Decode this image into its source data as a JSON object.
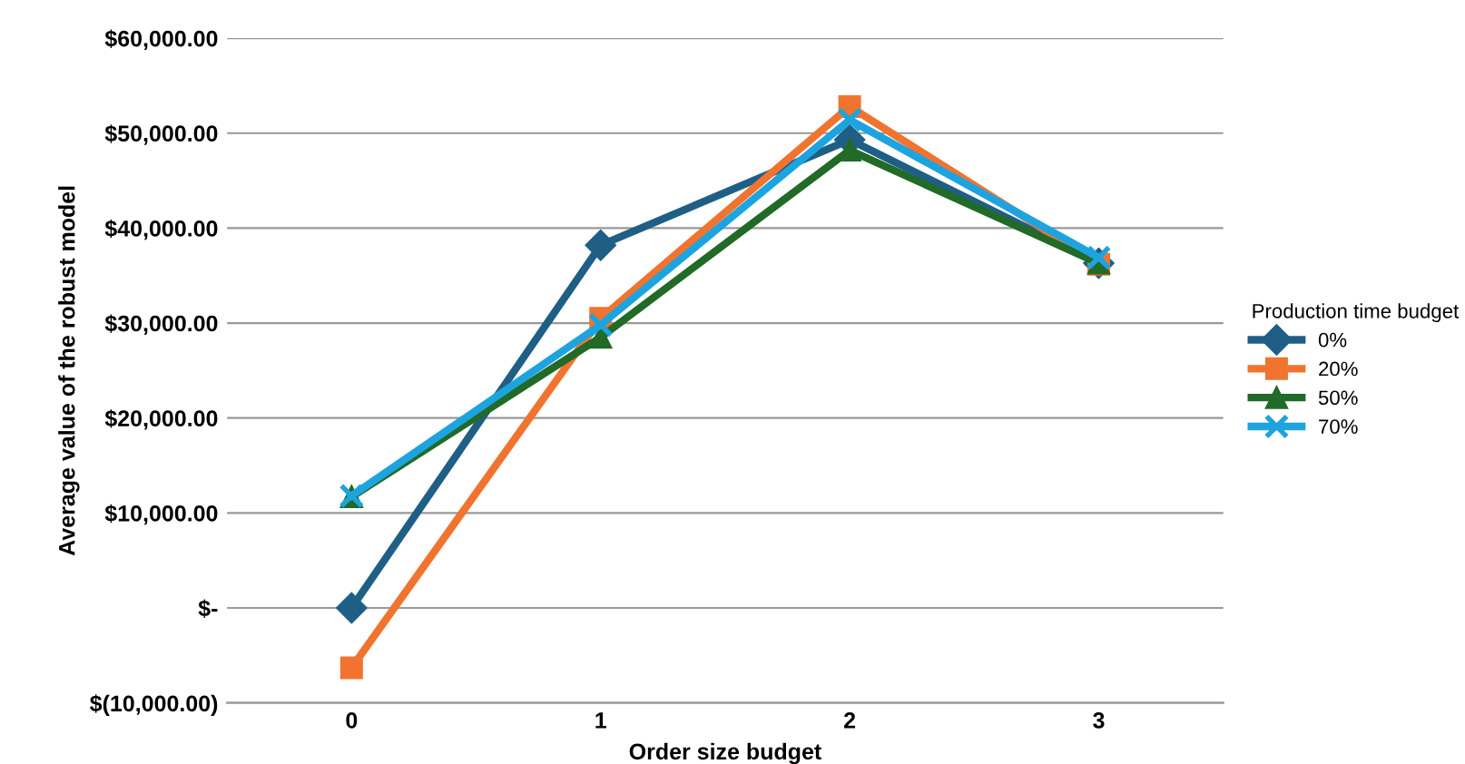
{
  "chart_data": {
    "type": "line",
    "xlabel": "Order size budget",
    "ylabel": "Average value of the robust model",
    "legend_title": "Production time budget",
    "categories": [
      "0",
      "1",
      "2",
      "3"
    ],
    "series": [
      {
        "name": "0%",
        "color": "#1f5f86",
        "marker": "diamond",
        "values": [
          0,
          38200,
          49300,
          36300
        ]
      },
      {
        "name": "20%",
        "color": "#f0742f",
        "marker": "square",
        "values": [
          -6300,
          30500,
          52800,
          36200
        ]
      },
      {
        "name": "50%",
        "color": "#216a27",
        "marker": "triangle",
        "values": [
          11700,
          28500,
          48200,
          36300
        ]
      },
      {
        "name": "70%",
        "color": "#1da4df",
        "marker": "cross",
        "values": [
          11800,
          29800,
          51400,
          36900
        ]
      }
    ],
    "ylim": [
      -10000,
      60000
    ],
    "yticks": [
      {
        "value": -10000,
        "label": "$(10,000.00)"
      },
      {
        "value": 0,
        "label": "$-"
      },
      {
        "value": 10000,
        "label": "$10,000.00"
      },
      {
        "value": 20000,
        "label": "$20,000.00"
      },
      {
        "value": 30000,
        "label": "$30,000.00"
      },
      {
        "value": 40000,
        "label": "$40,000.00"
      },
      {
        "value": 50000,
        "label": "$50,000.00"
      },
      {
        "value": 60000,
        "label": "$60,000.00"
      }
    ],
    "grid": "y",
    "legend": "right",
    "line_style": "solid"
  }
}
